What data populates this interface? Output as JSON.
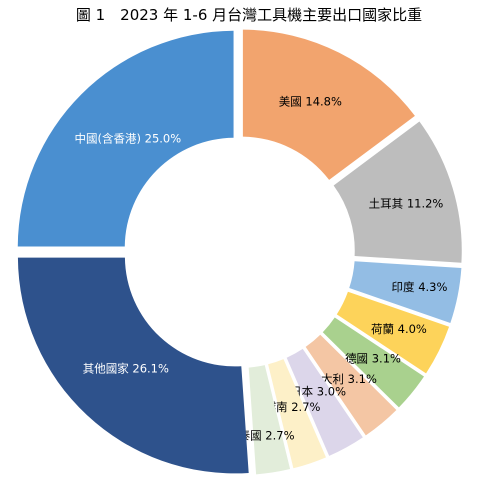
{
  "chart_data": {
    "type": "pie",
    "title": "圖 1　2023 年 1-6 月台灣工具機主要出口國家比重",
    "series": [
      {
        "label": "中國(含香港)",
        "value": 25.0,
        "display": "中國(含香港) 25.0%",
        "color": "#4a8fd0"
      },
      {
        "label": "美國",
        "value": 14.8,
        "display": "美國 14.8%",
        "color": "#f2a46e"
      },
      {
        "label": "土耳其",
        "value": 11.2,
        "display": "土耳其 11.2%",
        "color": "#bdbdbd"
      },
      {
        "label": "印度",
        "value": 4.3,
        "display": "印度 4.3%",
        "color": "#93bde4"
      },
      {
        "label": "荷蘭",
        "value": 4.0,
        "display": "荷蘭 4.0%",
        "color": "#fdd35a"
      },
      {
        "label": "德國",
        "value": 3.1,
        "display": "德國 3.1%",
        "color": "#a9d18e"
      },
      {
        "label": "義大利",
        "value": 3.1,
        "display": "義大利 3.1%",
        "color": "#f4c6a4"
      },
      {
        "label": "日本",
        "value": 3.0,
        "display": "日本 3.0%",
        "color": "#dcd6ea"
      },
      {
        "label": "越南",
        "value": 2.7,
        "display": "越南 2.7%",
        "color": "#fdf0c8"
      },
      {
        "label": "泰國",
        "value": 2.7,
        "display": "泰國 2.7%",
        "color": "#e2edda"
      },
      {
        "label": "其他國家",
        "value": 26.1,
        "display": "其他國家 26.1%",
        "color": "#2e528c"
      }
    ],
    "donut": true,
    "legend": "none",
    "label_text_color": {
      "light": "#ffffff",
      "dark": "#000000"
    }
  }
}
